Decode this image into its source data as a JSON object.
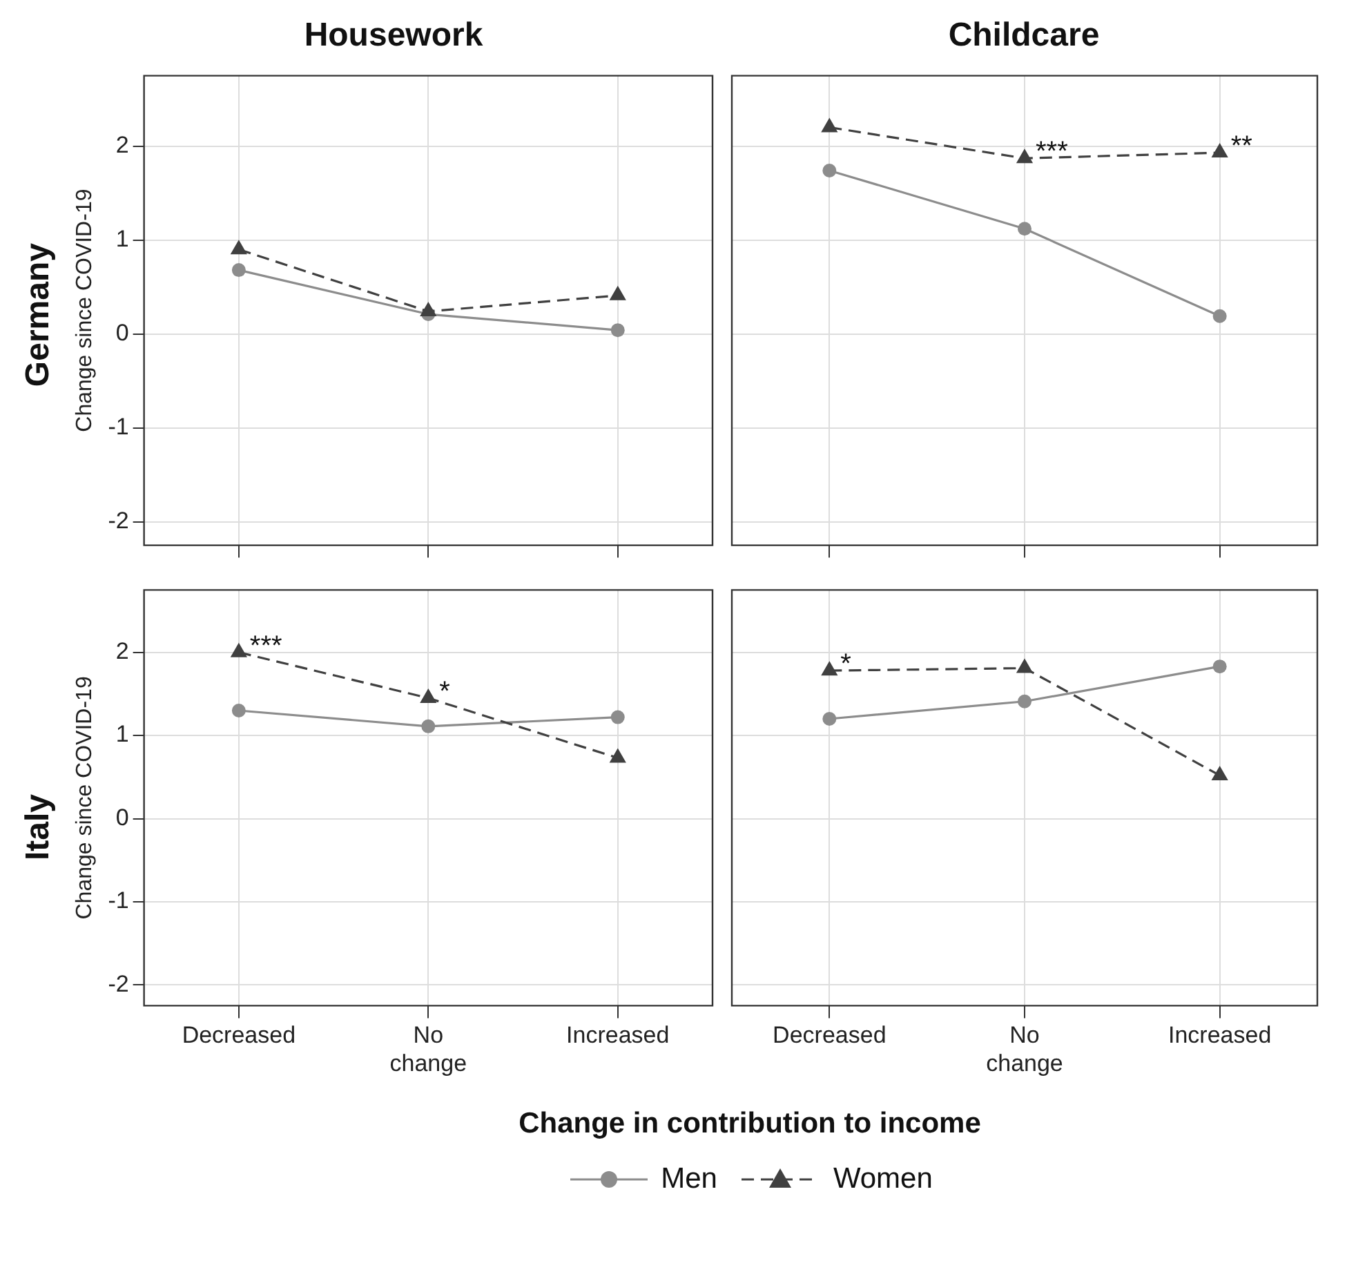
{
  "chart_data": [
    {
      "type": "line",
      "title": "Housework",
      "ylabel": "Change since COVID-19",
      "categories": [
        "Decreased",
        "No change",
        "Increased"
      ],
      "ylim": [
        -2.25,
        2.75
      ],
      "yticks": [
        -2,
        -1,
        0,
        1,
        2
      ],
      "grid": true,
      "tick_labels": "y",
      "legend": "bottom",
      "annotations": [
        "Germany"
      ],
      "series": [
        {
          "name": "Men",
          "color": "#8c8c8c",
          "marker": "circle",
          "line_style": "solid",
          "values": [
            0.68,
            0.21,
            0.04
          ]
        },
        {
          "name": "Women",
          "color": "#404040",
          "marker": "triangle",
          "line_style": "dashed",
          "values": [
            0.9,
            0.24,
            0.41
          ]
        }
      ]
    },
    {
      "type": "line",
      "title": "Childcare",
      "categories": [
        "Decreased",
        "No change",
        "Increased"
      ],
      "ylim": [
        -2.25,
        2.75
      ],
      "yticks": [
        -2,
        -1,
        0,
        1,
        2
      ],
      "grid": true,
      "tick_labels": false,
      "annotations": [
        {
          "text": "***",
          "x": "No change",
          "y": 1.87
        },
        {
          "text": "**",
          "x": "Increased",
          "y": 1.93
        }
      ],
      "series": [
        {
          "color": "#8c8c8c",
          "marker": "circle",
          "line_style": "solid",
          "values": [
            1.74,
            1.12,
            0.19
          ]
        },
        {
          "color": "#404040",
          "marker": "triangle",
          "line_style": "dashed",
          "values": [
            2.2,
            1.87,
            1.93
          ]
        }
      ]
    },
    {
      "type": "line",
      "ylabel": "Change since COVID-19",
      "xlabel": "Change in contribution to income",
      "categories": [
        "Decreased",
        "No change",
        "Increased"
      ],
      "ylim": [
        -2.25,
        2.75
      ],
      "yticks": [
        -2,
        -1,
        0,
        1,
        2
      ],
      "grid": true,
      "annotations": [
        "Italy",
        {
          "text": "***",
          "x": "Decreased",
          "y": 2.0
        },
        {
          "text": "*",
          "x": "No change",
          "y": 1.45
        }
      ],
      "series": [
        {
          "color": "#8c8c8c",
          "marker": "circle",
          "line_style": "solid",
          "values": [
            1.3,
            1.11,
            1.22
          ]
        },
        {
          "color": "#404040",
          "marker": "triangle",
          "line_style": "dashed",
          "values": [
            2.0,
            1.45,
            0.73
          ]
        }
      ]
    },
    {
      "type": "line",
      "categories": [
        "Decreased",
        "No change",
        "Increased"
      ],
      "ylim": [
        -2.25,
        2.75
      ],
      "yticks": [
        -2,
        -1,
        0,
        1,
        2
      ],
      "grid": true,
      "tick_labels": "x",
      "annotations": [
        {
          "text": "*",
          "x": "Decreased",
          "y": 1.78
        }
      ],
      "series": [
        {
          "color": "#8c8c8c",
          "marker": "circle",
          "line_style": "solid",
          "values": [
            1.2,
            1.41,
            1.83
          ]
        },
        {
          "color": "#404040",
          "marker": "triangle",
          "line_style": "dashed",
          "values": [
            1.78,
            1.81,
            0.52
          ]
        }
      ]
    }
  ]
}
